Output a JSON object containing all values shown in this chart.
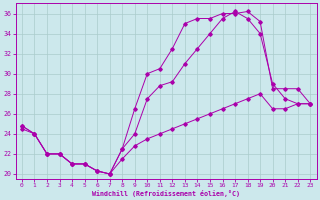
{
  "xlabel": "Windchill (Refroidissement éolien,°C)",
  "bg_color": "#cce8ec",
  "grid_color": "#aacccc",
  "line_color": "#aa00aa",
  "xlim": [
    -0.5,
    23.5
  ],
  "ylim": [
    19.5,
    37.0
  ],
  "yticks": [
    20,
    22,
    24,
    26,
    28,
    30,
    32,
    34,
    36
  ],
  "xticks": [
    0,
    1,
    2,
    3,
    4,
    5,
    6,
    7,
    8,
    9,
    10,
    11,
    12,
    13,
    14,
    15,
    16,
    17,
    18,
    19,
    20,
    21,
    22,
    23
  ],
  "series1_x": [
    0,
    1,
    2,
    3,
    4,
    5,
    6,
    7,
    8,
    9,
    10,
    11,
    12,
    13,
    14,
    15,
    16,
    17,
    18,
    19,
    20,
    21,
    22,
    23
  ],
  "series1_y": [
    24.8,
    24.0,
    22.0,
    22.0,
    21.0,
    21.0,
    20.3,
    20.0,
    22.5,
    26.5,
    30.0,
    30.5,
    32.5,
    35.0,
    35.5,
    35.5,
    36.0,
    36.0,
    36.2,
    35.2,
    28.5,
    28.5,
    28.5,
    27.0
  ],
  "series2_x": [
    0,
    1,
    2,
    3,
    4,
    5,
    6,
    7,
    8,
    9,
    10,
    11,
    12,
    13,
    14,
    15,
    16,
    17,
    18,
    19,
    20,
    21,
    22,
    23
  ],
  "series2_y": [
    24.8,
    24.0,
    22.0,
    22.0,
    21.0,
    21.0,
    20.3,
    20.0,
    22.5,
    24.0,
    27.5,
    28.8,
    29.2,
    31.0,
    32.5,
    34.0,
    35.5,
    36.2,
    35.5,
    34.0,
    29.0,
    27.5,
    27.0,
    27.0
  ],
  "series3_x": [
    0,
    1,
    2,
    3,
    4,
    5,
    6,
    7,
    8,
    9,
    10,
    11,
    12,
    13,
    14,
    15,
    16,
    17,
    18,
    19,
    20,
    21,
    22,
    23
  ],
  "series3_y": [
    24.5,
    24.0,
    22.0,
    22.0,
    21.0,
    21.0,
    20.3,
    20.0,
    21.5,
    22.8,
    23.5,
    24.0,
    24.5,
    25.0,
    25.5,
    26.0,
    26.5,
    27.0,
    27.5,
    28.0,
    26.5,
    26.5,
    27.0,
    27.0
  ]
}
